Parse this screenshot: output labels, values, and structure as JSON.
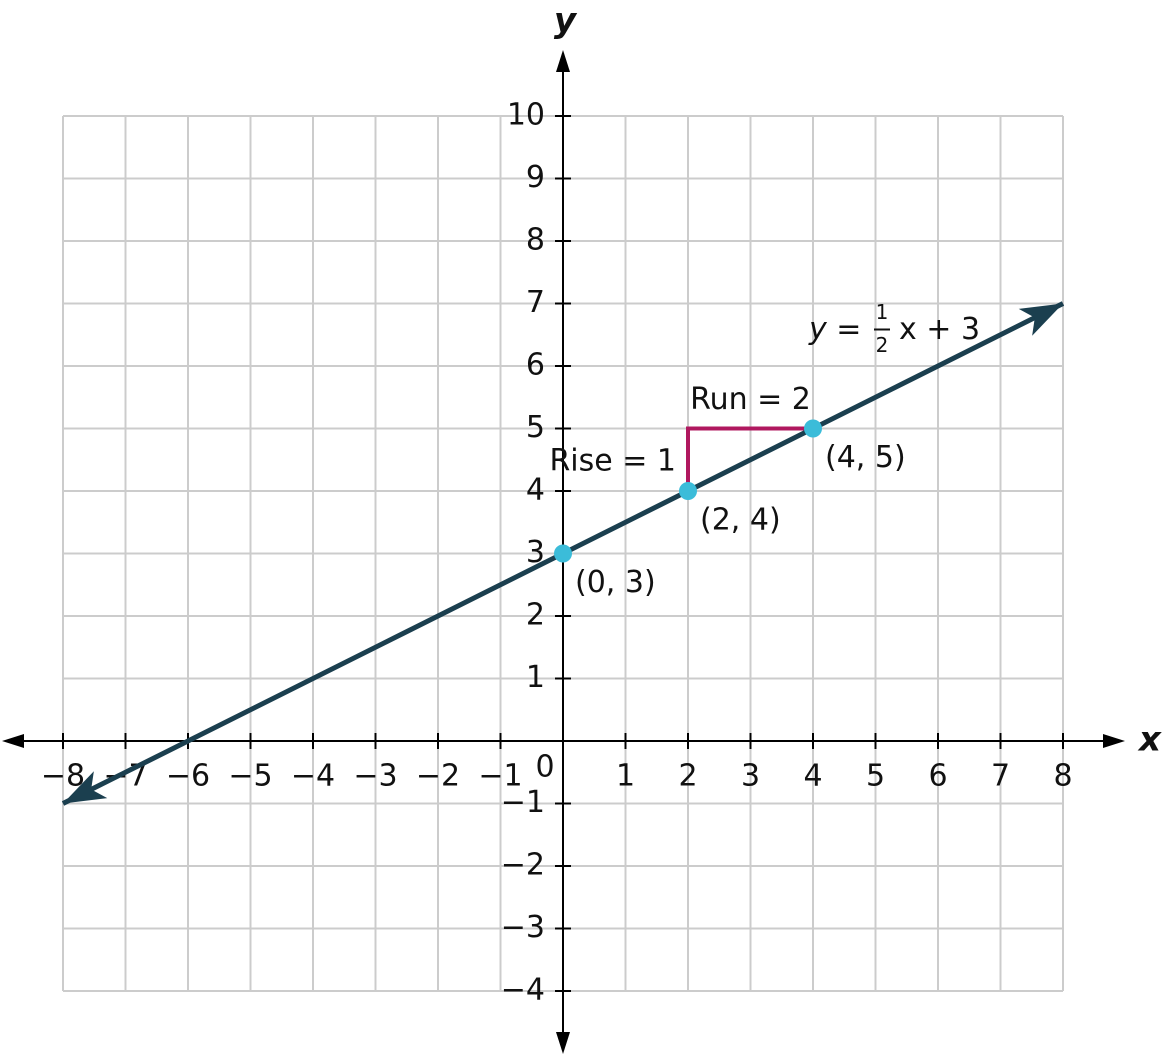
{
  "chart_data": {
    "type": "line",
    "x_label": "x",
    "y_label": "y",
    "xlim": [
      -8,
      8
    ],
    "ylim": [
      -4,
      10
    ],
    "xticks": [
      {
        "value": -8,
        "label": "−8"
      },
      {
        "value": -7,
        "label": "−7"
      },
      {
        "value": -6,
        "label": "−6"
      },
      {
        "value": -5,
        "label": "−5"
      },
      {
        "value": -4,
        "label": "−4"
      },
      {
        "value": -3,
        "label": "−3"
      },
      {
        "value": -2,
        "label": "−2"
      },
      {
        "value": -1,
        "label": "−1"
      },
      0,
      1,
      2,
      3,
      4,
      5,
      6,
      7,
      8
    ],
    "yticks": [
      {
        "value": -4,
        "label": "−4"
      },
      {
        "value": -3,
        "label": "−3"
      },
      {
        "value": -2,
        "label": "−2"
      },
      {
        "value": -1,
        "label": "−1"
      },
      1,
      2,
      3,
      4,
      5,
      6,
      7,
      8,
      9,
      10
    ],
    "grid": true,
    "x": [
      -8,
      8
    ],
    "values": [
      -1,
      7
    ],
    "color": "#1b3f4f",
    "points": {
      "color": "#3bbcd9",
      "x": [
        0,
        2,
        4
      ],
      "values": [
        3,
        4,
        5
      ],
      "labels": [
        "(0, 3)",
        "(2, 4)",
        "(4, 5)"
      ]
    },
    "equation": {
      "prefix": "y =",
      "numerator": "1",
      "denominator": "2",
      "suffix": "x + 3"
    },
    "rise_run": {
      "color": "#b0185f",
      "rise_label": "Rise = 1",
      "run_label": "Run = 2"
    }
  }
}
